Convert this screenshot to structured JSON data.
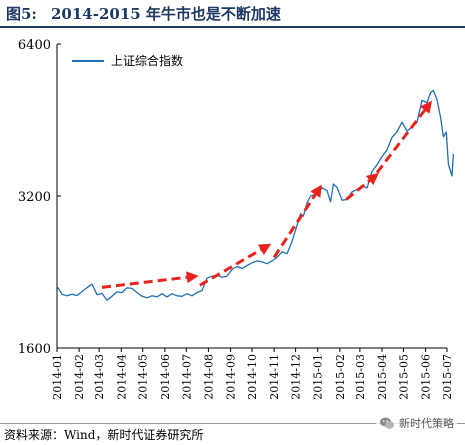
{
  "figure": {
    "number": "图5:",
    "title": "2014-2015 年牛市也是不断加速"
  },
  "source_note": "资料来源：Wind，新时代证券研究所",
  "watermark": "新时代策略",
  "colors": {
    "series": "#1f6fb5",
    "arrow": "#e8231c",
    "title": "#1f3864"
  },
  "chart_data": {
    "type": "line",
    "y_scale": "log",
    "ylim": [
      1600,
      6400
    ],
    "y_ticks": [
      1600,
      3200,
      6400
    ],
    "y_tick_labels": [
      "1600",
      "3200",
      "6400"
    ],
    "x_ticks": [
      "2014-01",
      "2014-02",
      "2014-03",
      "2014-04",
      "2014-05",
      "2014-06",
      "2014-07",
      "2014-08",
      "2014-09",
      "2014-10",
      "2014-11",
      "2014-12",
      "2015-01",
      "2015-02",
      "2015-03",
      "2015-04",
      "2015-05",
      "2015-06",
      "2015-07"
    ],
    "legend": {
      "position": "top-left"
    },
    "series": [
      {
        "name": "上证综合指数",
        "x": [
          "2014-01-02",
          "2014-01-08",
          "2014-01-15",
          "2014-01-22",
          "2014-01-29",
          "2014-02-12",
          "2014-02-19",
          "2014-02-26",
          "2014-03-05",
          "2014-03-12",
          "2014-03-19",
          "2014-03-26",
          "2014-04-02",
          "2014-04-09",
          "2014-04-16",
          "2014-04-23",
          "2014-04-30",
          "2014-05-07",
          "2014-05-14",
          "2014-05-21",
          "2014-05-28",
          "2014-06-04",
          "2014-06-11",
          "2014-06-18",
          "2014-06-25",
          "2014-07-02",
          "2014-07-09",
          "2014-07-16",
          "2014-07-23",
          "2014-07-30",
          "2014-08-06",
          "2014-08-13",
          "2014-08-20",
          "2014-08-27",
          "2014-09-03",
          "2014-09-10",
          "2014-09-17",
          "2014-09-24",
          "2014-10-01",
          "2014-10-08",
          "2014-10-15",
          "2014-10-22",
          "2014-10-29",
          "2014-11-05",
          "2014-11-12",
          "2014-11-19",
          "2014-11-26",
          "2014-12-03",
          "2014-12-08",
          "2014-12-12",
          "2014-12-17",
          "2014-12-22",
          "2014-12-31",
          "2015-01-07",
          "2015-01-14",
          "2015-01-19",
          "2015-01-23",
          "2015-01-28",
          "2015-02-04",
          "2015-02-11",
          "2015-02-18",
          "2015-02-25",
          "2015-03-04",
          "2015-03-11",
          "2015-03-18",
          "2015-03-25",
          "2015-04-01",
          "2015-04-08",
          "2015-04-15",
          "2015-04-22",
          "2015-04-29",
          "2015-05-06",
          "2015-05-13",
          "2015-05-20",
          "2015-05-27",
          "2015-06-03",
          "2015-06-08",
          "2015-06-12",
          "2015-06-17",
          "2015-06-22",
          "2015-06-26",
          "2015-06-30",
          "2015-07-03",
          "2015-07-08",
          "2015-07-10"
        ],
        "y": [
          2109,
          2045,
          2030,
          2045,
          2033,
          2106,
          2140,
          2040,
          2052,
          1990,
          2025,
          2066,
          2060,
          2105,
          2100,
          2060,
          2026,
          2012,
          2030,
          2020,
          2050,
          2020,
          2050,
          2030,
          2025,
          2050,
          2030,
          2060,
          2080,
          2200,
          2220,
          2230,
          2210,
          2220,
          2290,
          2320,
          2300,
          2330,
          2360,
          2380,
          2370,
          2350,
          2380,
          2420,
          2480,
          2460,
          2600,
          2800,
          2950,
          2920,
          3100,
          3200,
          3234,
          3320,
          3280,
          3116,
          3380,
          3330,
          3140,
          3150,
          3260,
          3300,
          3350,
          3320,
          3580,
          3690,
          3830,
          3950,
          4180,
          4290,
          4480,
          4300,
          4380,
          4480,
          4950,
          4900,
          5130,
          5180,
          4970,
          4580,
          4192,
          4280,
          3700,
          3507,
          3877
        ]
      }
    ],
    "arrows": [
      {
        "from": [
          "2014-03-05",
          2110
        ],
        "to": [
          "2014-07-15",
          2220
        ]
      },
      {
        "from": [
          "2014-07-20",
          2130
        ],
        "to": [
          "2014-10-25",
          2560
        ]
      },
      {
        "from": [
          "2014-11-01",
          2420
        ],
        "to": [
          "2015-01-05",
          3340
        ]
      },
      {
        "from": [
          "2015-02-10",
          3150
        ],
        "to": [
          "2015-03-25",
          3530
        ]
      },
      {
        "from": [
          "2015-03-25",
          3560
        ],
        "to": [
          "2015-06-08",
          4900
        ]
      }
    ]
  }
}
